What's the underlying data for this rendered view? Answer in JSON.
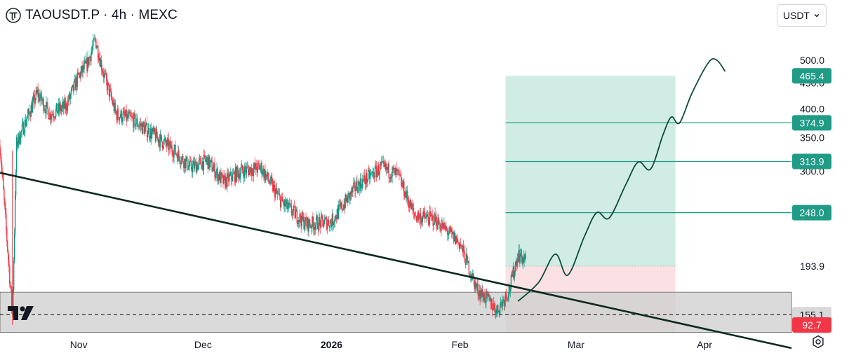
{
  "header": {
    "symbol_title": "TAOUSDT.P · 4h · MEXC",
    "logo_icon": "bittensor-tau-logo-icon"
  },
  "currency_selector": {
    "label": "USDT",
    "icon": "chevron-down-icon"
  },
  "watermark_icon": "tradingview-logo-icon",
  "settings_icon": "gear-icon",
  "colors": {
    "bull": "#089981",
    "bear": "#f23645",
    "target_zone": "#d1ece5",
    "stop_zone": "#fbe1e4",
    "level_line": "#1f9b86",
    "trendline": "#0b2a1f",
    "support_zone": "#cfcfcf",
    "path": "#0c4b3b"
  },
  "chart_data": {
    "type": "candlestick",
    "symbol": "TAOUSDT.P",
    "interval": "4h",
    "exchange": "MEXC",
    "quote_currency": "USDT",
    "x_axis": {
      "tick_labels": [
        "Nov",
        "Dec",
        "2026",
        "Feb",
        "Mar",
        "Apr"
      ],
      "range": [
        "2025-10-13",
        "2026-04-22"
      ]
    },
    "y_axis": {
      "scale": "log",
      "tick_labels": [
        "500.0",
        "450.0",
        "400.0",
        "350.0",
        "300.0",
        "193.9"
      ]
    },
    "price_overview": [
      {
        "date": "2025-10-13",
        "price": 338
      },
      {
        "date": "2025-10-16",
        "price": 155
      },
      {
        "date": "2025-10-17",
        "price": 340
      },
      {
        "date": "2025-10-22",
        "price": 430
      },
      {
        "date": "2025-10-25",
        "price": 390
      },
      {
        "date": "2025-10-29",
        "price": 405
      },
      {
        "date": "2025-11-01",
        "price": 465
      },
      {
        "date": "2025-11-03",
        "price": 490
      },
      {
        "date": "2025-11-05",
        "price": 550
      },
      {
        "date": "2025-11-07",
        "price": 470
      },
      {
        "date": "2025-11-10",
        "price": 390
      },
      {
        "date": "2025-11-14",
        "price": 380
      },
      {
        "date": "2025-11-19",
        "price": 355
      },
      {
        "date": "2025-11-24",
        "price": 330
      },
      {
        "date": "2025-11-28",
        "price": 305
      },
      {
        "date": "2025-12-02",
        "price": 315
      },
      {
        "date": "2025-12-06",
        "price": 285
      },
      {
        "date": "2025-12-10",
        "price": 300
      },
      {
        "date": "2025-12-15",
        "price": 305
      },
      {
        "date": "2025-12-20",
        "price": 260
      },
      {
        "date": "2025-12-26",
        "price": 235
      },
      {
        "date": "2026-01-01",
        "price": 238
      },
      {
        "date": "2026-01-07",
        "price": 280
      },
      {
        "date": "2026-01-13",
        "price": 305
      },
      {
        "date": "2026-01-17",
        "price": 295
      },
      {
        "date": "2026-01-21",
        "price": 245
      },
      {
        "date": "2026-01-26",
        "price": 240
      },
      {
        "date": "2026-02-01",
        "price": 215
      },
      {
        "date": "2026-02-05",
        "price": 175
      },
      {
        "date": "2026-02-08",
        "price": 165
      },
      {
        "date": "2026-02-10",
        "price": 158
      },
      {
        "date": "2026-02-13",
        "price": 175
      },
      {
        "date": "2026-02-15",
        "price": 205
      },
      {
        "date": "2026-02-17",
        "price": 198
      }
    ],
    "annotations": {
      "position": {
        "type": "long",
        "entry": 193.9,
        "take_profit": 465.4,
        "stop_loss": 92.7
      },
      "horizontal_levels": [
        {
          "label": "374.9",
          "value": 374.9
        },
        {
          "label": "313.9",
          "value": 313.9
        },
        {
          "label": "248.0",
          "value": 248.0
        },
        {
          "label": "155.1",
          "value": 155.1
        }
      ],
      "take_profit_label": "465.4",
      "stop_label": "92.7",
      "support_zone": [
        143,
        172
      ],
      "trendline": [
        {
          "date": "2025-10-13",
          "price": 298
        },
        {
          "date": "2026-04-22",
          "price": 133
        }
      ],
      "projected_path": [
        {
          "date": "2026-02-15",
          "price": 165
        },
        {
          "date": "2026-02-20",
          "price": 180
        },
        {
          "date": "2026-02-24",
          "price": 205
        },
        {
          "date": "2026-02-27",
          "price": 186
        },
        {
          "date": "2026-03-03",
          "price": 222
        },
        {
          "date": "2026-03-06",
          "price": 248
        },
        {
          "date": "2026-03-09",
          "price": 242
        },
        {
          "date": "2026-03-13",
          "price": 282
        },
        {
          "date": "2026-03-16",
          "price": 313
        },
        {
          "date": "2026-03-19",
          "price": 303
        },
        {
          "date": "2026-03-22",
          "price": 355
        },
        {
          "date": "2026-03-24",
          "price": 385
        },
        {
          "date": "2026-03-26",
          "price": 374.9
        },
        {
          "date": "2026-03-29",
          "price": 430
        },
        {
          "date": "2026-04-02",
          "price": 495
        },
        {
          "date": "2026-04-04",
          "price": 500
        },
        {
          "date": "2026-04-06",
          "price": 475
        }
      ]
    }
  }
}
